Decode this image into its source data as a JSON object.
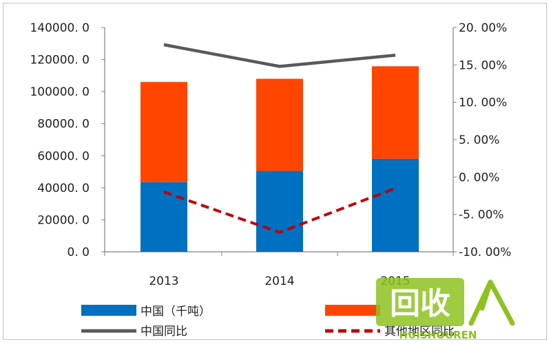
{
  "chart_data": {
    "type": "bar",
    "categories": [
      "2013",
      "2014",
      "2015"
    ],
    "stacked": true,
    "series": [
      {
        "name": "中国（千吨）",
        "type": "bar",
        "axis": "left",
        "color": "#0070c0",
        "values": [
          43500,
          50500,
          58000
        ]
      },
      {
        "name": "",
        "type": "bar",
        "axis": "left",
        "color": "#ff4500",
        "values": [
          62500,
          57500,
          57800
        ]
      },
      {
        "name": "中国同比",
        "type": "line",
        "axis": "right",
        "style": "solid",
        "color": "#595959",
        "values": [
          17.7,
          14.8,
          16.3
        ]
      },
      {
        "name": "其他地区同比",
        "type": "line",
        "axis": "right",
        "style": "dashed",
        "color": "#c00000",
        "values": [
          -2.0,
          -7.4,
          -1.5
        ]
      }
    ],
    "left_axis": {
      "min": 0,
      "max": 140000,
      "step": 20000,
      "tick_labels": [
        "0. 0",
        "20000. 0",
        "40000. 0",
        "60000. 0",
        "80000. 0",
        "100000. 0",
        "120000. 0",
        "140000. 0"
      ]
    },
    "right_axis": {
      "min": -10,
      "max": 20,
      "step": 5,
      "tick_labels": [
        "-10. 00%",
        "-5. 00%",
        "0. 00%",
        "5. 00%",
        "10. 00%",
        "15. 00%",
        "20. 00%"
      ]
    },
    "grid": false,
    "legend_position": "bottom"
  },
  "watermark": {
    "text": "回收",
    "subtext": "HUISHOUREN",
    "icon": "leaf-icon",
    "color": "#8dc21f"
  }
}
